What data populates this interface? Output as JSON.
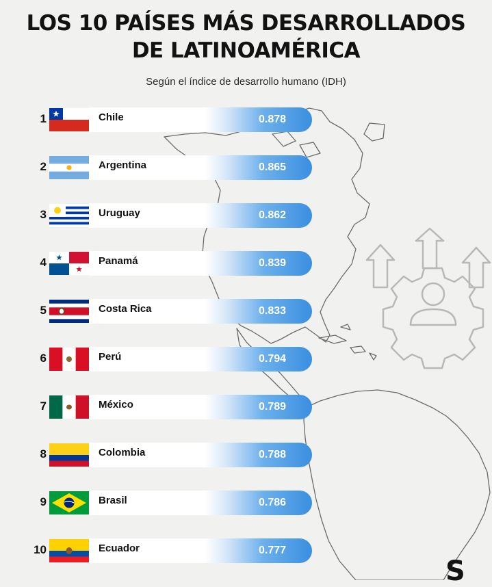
{
  "title_line1": "LOS 10 PAÍSES MÁS DESARROLLADOS",
  "title_line2": "DE LATINOAMÉRICA",
  "subtitle": "Según el índice de desarrollo humano (IDH)",
  "logo_text": "S",
  "colors": {
    "background": "#f1f1ef",
    "value_band": "#3a8fe0",
    "value_text": "#ffffff",
    "map_stroke": "#6a6a6a",
    "icon_stroke": "#b8b8b8"
  },
  "chart_data": {
    "type": "bar",
    "title": "LOS 10 PAÍSES MÁS DESARROLLADOS DE LATINOAMÉRICA",
    "subtitle": "Según el índice de desarrollo humano (IDH)",
    "categories": [
      "Chile",
      "Argentina",
      "Uruguay",
      "Panamá",
      "Costa Rica",
      "Perú",
      "México",
      "Colombia",
      "Brasil",
      "Ecuador"
    ],
    "ranks": [
      "1",
      "2",
      "3",
      "4",
      "5",
      "6",
      "7",
      "8",
      "9",
      "10"
    ],
    "values": [
      0.878,
      0.865,
      0.862,
      0.839,
      0.833,
      0.794,
      0.789,
      0.788,
      0.786,
      0.777
    ],
    "value_labels": [
      "0.878",
      "0.865",
      "0.862",
      "0.839",
      "0.833",
      "0.794",
      "0.789",
      "0.788",
      "0.786",
      "0.777"
    ],
    "flags": [
      "chile",
      "argentina",
      "uruguay",
      "panama",
      "costa-rica",
      "peru",
      "mexico",
      "colombia",
      "brazil",
      "ecuador"
    ],
    "grid": false,
    "legend": "none"
  }
}
